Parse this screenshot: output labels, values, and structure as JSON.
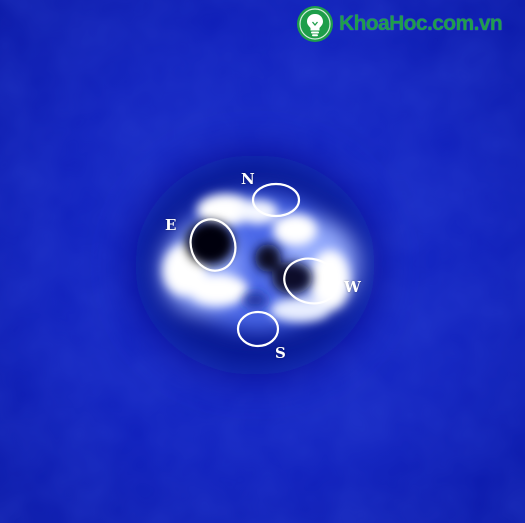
{
  "image": {
    "colors": {
      "background": "#0f1fb8",
      "glow": "#ffffff",
      "dark_core": "#050510",
      "markers": "#ffffff",
      "watermark": "#1e9e4a"
    }
  },
  "markers": [
    {
      "label": "N"
    },
    {
      "label": "E"
    },
    {
      "label": "W"
    },
    {
      "label": "S"
    }
  ],
  "watermark": {
    "text": "KhoaHoc.com.vn",
    "icon": "lightbulb-icon"
  }
}
